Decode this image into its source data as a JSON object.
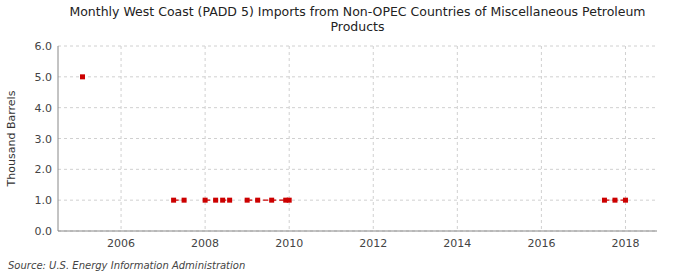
{
  "chart_data": {
    "type": "line",
    "title": "Monthly West Coast (PADD 5) Imports from Non-OPEC Countries of Miscellaneous Petroleum\nProducts",
    "ylabel": "Thousand Barrels",
    "source": "Source: U.S. Energy Information Administration",
    "x": [
      2005.083,
      null,
      2007.25,
      2007.5,
      null,
      2008.0,
      2008.25,
      2008.417,
      2008.583,
      null,
      2009.0,
      2009.25,
      2009.583,
      2009.917,
      2010.0,
      null,
      2017.5,
      2017.75,
      2018.0
    ],
    "series": [
      {
        "color": "#cc0000",
        "marker": "square",
        "line_style": "dashed",
        "values": [
          5.0,
          null,
          1.0,
          1.0,
          null,
          1.0,
          1.0,
          1.0,
          1.0,
          null,
          1.0,
          1.0,
          1.0,
          1.0,
          1.0,
          null,
          1.0,
          1.0,
          1.0
        ]
      }
    ],
    "xlim": [
      2004.5,
      2018.75
    ],
    "ylim": [
      0.0,
      6.0
    ],
    "xticks": [
      2006,
      2008,
      2010,
      2012,
      2014,
      2016,
      2018
    ],
    "yticks": [
      {
        "value": 0.0,
        "label": "0.0"
      },
      {
        "value": 1.0,
        "label": "1.0"
      },
      {
        "value": 2.0,
        "label": "2.0"
      },
      {
        "value": 3.0,
        "label": "3.0"
      },
      {
        "value": 4.0,
        "label": "4.0"
      },
      {
        "value": 5.0,
        "label": "5.0"
      },
      {
        "value": 6.0,
        "label": "6.0"
      }
    ],
    "grid": true
  }
}
